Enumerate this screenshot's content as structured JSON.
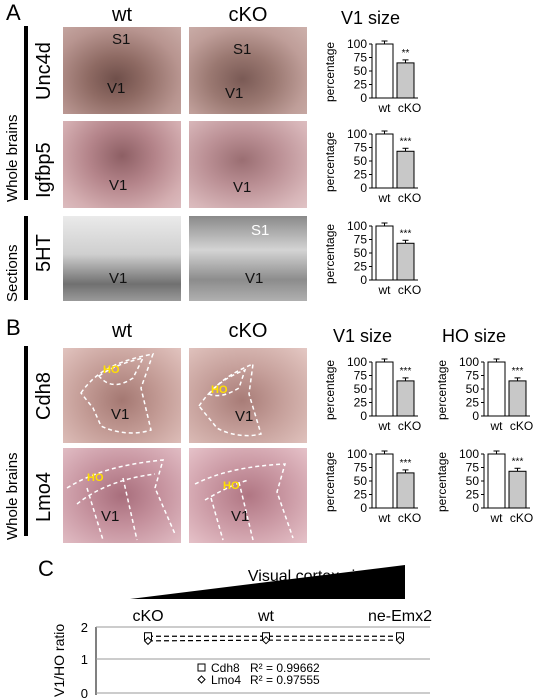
{
  "panels": {
    "a": "A",
    "b": "B",
    "c": "C"
  },
  "columns": {
    "wt": "wt",
    "cko": "cKO"
  },
  "headers": {
    "v1_size": "V1 size",
    "ho_size": "HO size"
  },
  "groups": {
    "whole_brains_a": "Whole brains",
    "sections": "Sections",
    "whole_brains_b": "Whole brains"
  },
  "genes": {
    "unc4d": "Unc4d",
    "igfbp5": "Igfbp5",
    "5ht": "5HT",
    "cdh8": "Cdh8",
    "lmo4": "Lmo4"
  },
  "photo_labels": {
    "s1": "S1",
    "v1": "V1",
    "ho": "HO"
  },
  "panel_c": {
    "arrow_label": "Visual cortex size",
    "xcats": [
      "cKO",
      "wt",
      "ne-Emx2"
    ],
    "ylabel": "V1/HO ratio",
    "yticks": [
      "2",
      "1",
      "0"
    ],
    "legend": [
      {
        "symbol": "square",
        "name": "Cdh8",
        "r2": "R² = 0.99662"
      },
      {
        "symbol": "diamond",
        "name": "Lmo4",
        "r2": "R² = 0.97555"
      }
    ]
  },
  "chart_data": [
    {
      "type": "bar",
      "title": "V1 size",
      "row": "Unc4d",
      "categories": [
        "wt",
        "cKO"
      ],
      "values": [
        100,
        65
      ],
      "ylabel": "percentage",
      "ylim": [
        0,
        100
      ],
      "yticks": [
        0,
        25,
        50,
        75,
        100
      ],
      "significance": "**"
    },
    {
      "type": "bar",
      "row": "Igfbp5",
      "categories": [
        "wt",
        "cKO"
      ],
      "values": [
        100,
        68
      ],
      "ylabel": "percentage",
      "ylim": [
        0,
        100
      ],
      "yticks": [
        0,
        25,
        50,
        75,
        100
      ],
      "significance": "***"
    },
    {
      "type": "bar",
      "row": "5HT",
      "categories": [
        "wt",
        "cKO"
      ],
      "values": [
        100,
        68
      ],
      "ylabel": "percentage",
      "ylim": [
        0,
        100
      ],
      "yticks": [
        0,
        25,
        50,
        75,
        100
      ],
      "significance": "***"
    },
    {
      "type": "bar",
      "title": "V1 size",
      "row": "Cdh8",
      "categories": [
        "wt",
        "cKO"
      ],
      "values": [
        100,
        65
      ],
      "ylabel": "percentage",
      "ylim": [
        0,
        100
      ],
      "yticks": [
        0,
        25,
        50,
        75,
        100
      ],
      "significance": "***"
    },
    {
      "type": "bar",
      "title": "HO size",
      "row": "Cdh8",
      "categories": [
        "wt",
        "cKO"
      ],
      "values": [
        100,
        65
      ],
      "ylabel": "percentage",
      "ylim": [
        0,
        100
      ],
      "yticks": [
        0,
        25,
        50,
        75,
        100
      ],
      "significance": "***"
    },
    {
      "type": "bar",
      "row": "Lmo4",
      "categories": [
        "wt",
        "cKO"
      ],
      "values": [
        100,
        65
      ],
      "ylabel": "percentage",
      "ylim": [
        0,
        100
      ],
      "yticks": [
        0,
        25,
        50,
        75,
        100
      ],
      "significance": "***"
    },
    {
      "type": "bar",
      "row": "Lmo4",
      "categories": [
        "wt",
        "cKO"
      ],
      "values": [
        100,
        68
      ],
      "ylabel": "percentage",
      "ylim": [
        0,
        100
      ],
      "yticks": [
        0,
        25,
        50,
        75,
        100
      ],
      "significance": "***"
    },
    {
      "type": "line",
      "ylabel": "V1/HO ratio",
      "x": [
        "cKO",
        "wt",
        "ne-Emx2"
      ],
      "ylim": [
        0,
        2
      ],
      "yticks": [
        0,
        1,
        2
      ],
      "series": [
        {
          "name": "Cdh8",
          "values": [
            1.72,
            1.72,
            1.72
          ],
          "r2": 0.99662
        },
        {
          "name": "Lmo4",
          "values": [
            1.58,
            1.6,
            1.6
          ],
          "r2": 0.97555
        }
      ]
    }
  ]
}
